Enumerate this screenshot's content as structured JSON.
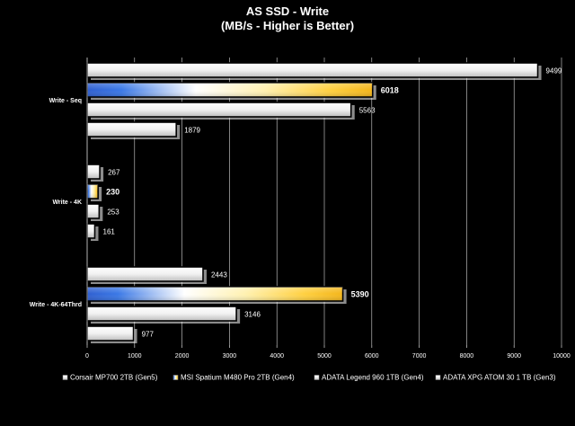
{
  "chart_data": {
    "type": "bar",
    "orientation": "horizontal",
    "title": "AS SSD - Write",
    "subtitle": "(MB/s - Higher is Better)",
    "categories": [
      "Write - Seq",
      "Write - 4K",
      "Write - 4K-64Thrd"
    ],
    "xlim": [
      0,
      10000
    ],
    "xticks": [
      0,
      1000,
      2000,
      3000,
      4000,
      5000,
      6000,
      7000,
      8000,
      9000,
      10000
    ],
    "grid": true,
    "legend_position": "bottom",
    "highlight_series": 1,
    "series": [
      {
        "name": "Corsair MP700 2TB (Gen5)",
        "values": [
          9499,
          267,
          2443
        ],
        "labels": [
          "9499",
          "267",
          "2443"
        ]
      },
      {
        "name": "MSI Spatium M480 Pro 2TB (Gen4)",
        "values": [
          6018,
          230,
          5390
        ],
        "labels": [
          "6018",
          "230",
          "5390"
        ]
      },
      {
        "name": "ADATA Legend 960 1TB (Gen4)",
        "values": [
          5563,
          253,
          3146
        ],
        "labels": [
          "5563",
          "253",
          "3146"
        ]
      },
      {
        "name": "ADATA XPG ATOM 30 1 TB (Gen3)",
        "values": [
          1879,
          161,
          977
        ],
        "labels": [
          "1879",
          "161",
          "977"
        ]
      }
    ]
  }
}
